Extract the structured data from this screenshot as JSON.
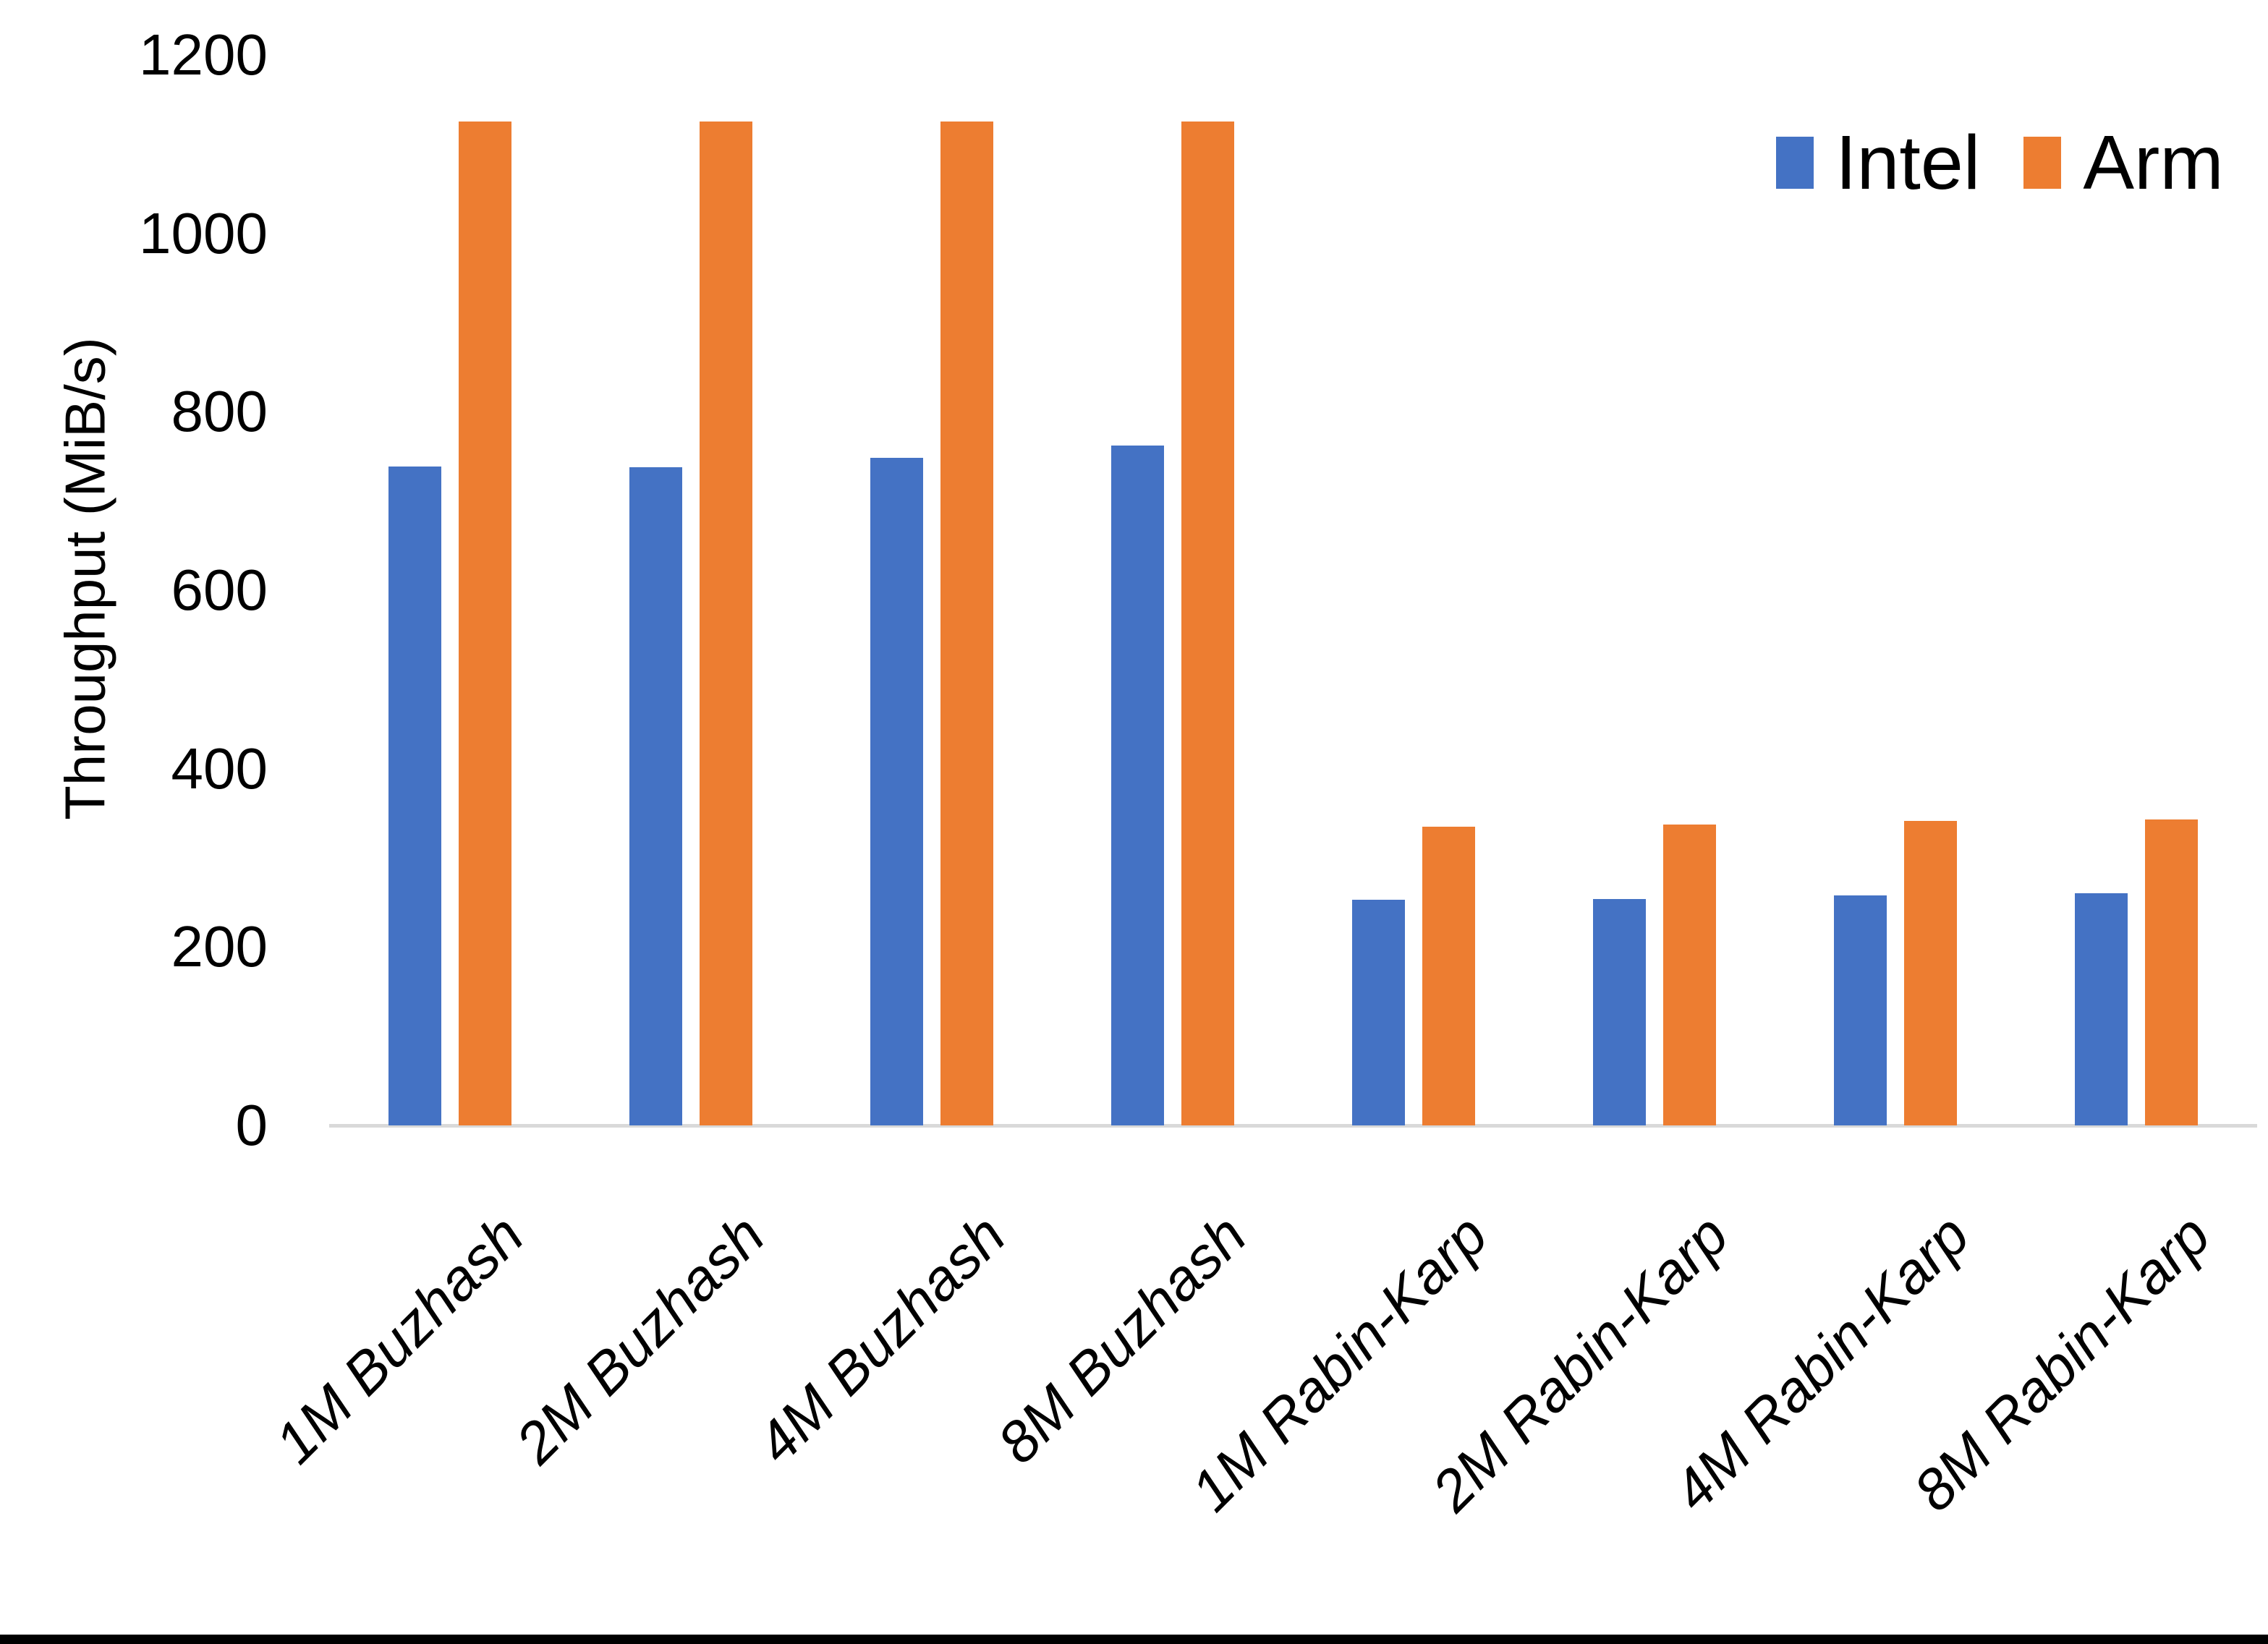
{
  "chart_data": {
    "type": "bar",
    "title": "",
    "ylabel": "Throughput (MiB/s)",
    "xlabel": "",
    "categories": [
      "1M Buzhash",
      "2M Buzhash",
      "4M Buzhash",
      "8M Buzhash",
      "1M Rabin-Karp",
      "2M Rabin-Karp",
      "4M Rabin-Karp",
      "8M Rabin-Karp"
    ],
    "series": [
      {
        "name": "Intel",
        "color": "#4472C4",
        "values": [
          739,
          738,
          748,
          762,
          253,
          254,
          258,
          260
        ]
      },
      {
        "name": "Arm",
        "color": "#ED7D31",
        "values": [
          1125,
          1125,
          1125,
          1125,
          335,
          337,
          341,
          343
        ]
      }
    ],
    "ylim": [
      0,
      1200
    ],
    "yticks": [
      0,
      200,
      400,
      600,
      800,
      1000,
      1200
    ],
    "grid": false,
    "legend_position": "top-right",
    "axis_line_color": "#D9D9D9",
    "bar_label_style": "italic",
    "background_color": "#FFFFFF",
    "bottom_border_color": "#000000"
  }
}
